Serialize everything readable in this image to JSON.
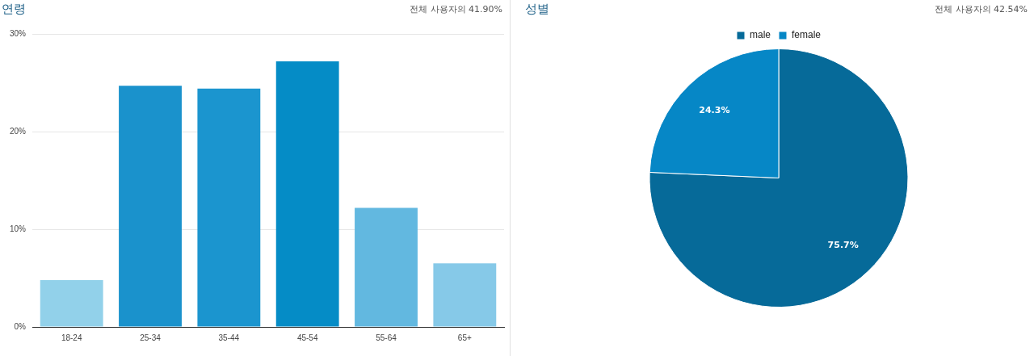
{
  "chart_data": [
    {
      "type": "bar",
      "title": "연령",
      "subtitle": "전체 사용자의 41.90%",
      "categories": [
        "18-24",
        "25-34",
        "35-44",
        "45-54",
        "55-64",
        "65+"
      ],
      "values": [
        4.8,
        24.7,
        24.4,
        27.2,
        12.2,
        6.5
      ],
      "colors": [
        "#92d1ea",
        "#1a92cc",
        "#1b95cf",
        "#058cc6",
        "#62b8e0",
        "#86c9e8"
      ],
      "ylim": [
        0,
        30
      ],
      "yticks": [
        {
          "value": 0,
          "label": "0%"
        },
        {
          "value": 10,
          "label": "10%"
        },
        {
          "value": 20,
          "label": "20%"
        },
        {
          "value": 30,
          "label": "30%"
        }
      ],
      "grid": "y",
      "legend": false
    },
    {
      "type": "pie",
      "title": "성별",
      "subtitle": "전체 사용자의 42.54%",
      "categories": [
        "male",
        "female"
      ],
      "values": [
        75.7,
        24.3
      ],
      "colors": [
        "#066a99",
        "#0687c6"
      ],
      "value_labels": [
        "75.7%",
        "24.3%"
      ],
      "legend": "top"
    }
  ]
}
